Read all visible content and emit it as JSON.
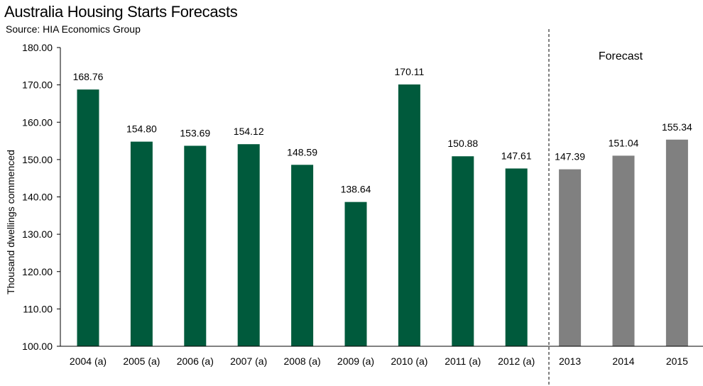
{
  "title": "Australia Housing Starts Forecasts",
  "subtitle": "Source: HIA Economics Group",
  "forecast_label": "Forecast",
  "colors": {
    "actual": "#005a3c",
    "forecast": "#808080"
  },
  "chart_data": {
    "type": "bar",
    "title": "Australia Housing Starts Forecasts",
    "xlabel": "",
    "ylabel": "Thousand dwellings commenced",
    "ylim": [
      100,
      180
    ],
    "yticks": [
      "100.00",
      "110.00",
      "120.00",
      "130.00",
      "140.00",
      "150.00",
      "160.00",
      "170.00",
      "180.00"
    ],
    "categories": [
      "2004 (a)",
      "2005 (a)",
      "2006 (a)",
      "2007 (a)",
      "2008 (a)",
      "2009 (a)",
      "2010 (a)",
      "2011 (a)",
      "2012 (a)",
      "2013",
      "2014",
      "2015"
    ],
    "values": [
      168.76,
      154.8,
      153.69,
      154.12,
      148.59,
      138.64,
      170.11,
      150.88,
      147.61,
      147.39,
      151.04,
      155.34
    ],
    "value_labels": [
      "168.76",
      "154.80",
      "153.69",
      "154.12",
      "148.59",
      "138.64",
      "170.11",
      "150.88",
      "147.61",
      "147.39",
      "151.04",
      "155.34"
    ],
    "is_forecast": [
      false,
      false,
      false,
      false,
      false,
      false,
      false,
      false,
      false,
      true,
      true,
      true
    ],
    "grid": false
  }
}
